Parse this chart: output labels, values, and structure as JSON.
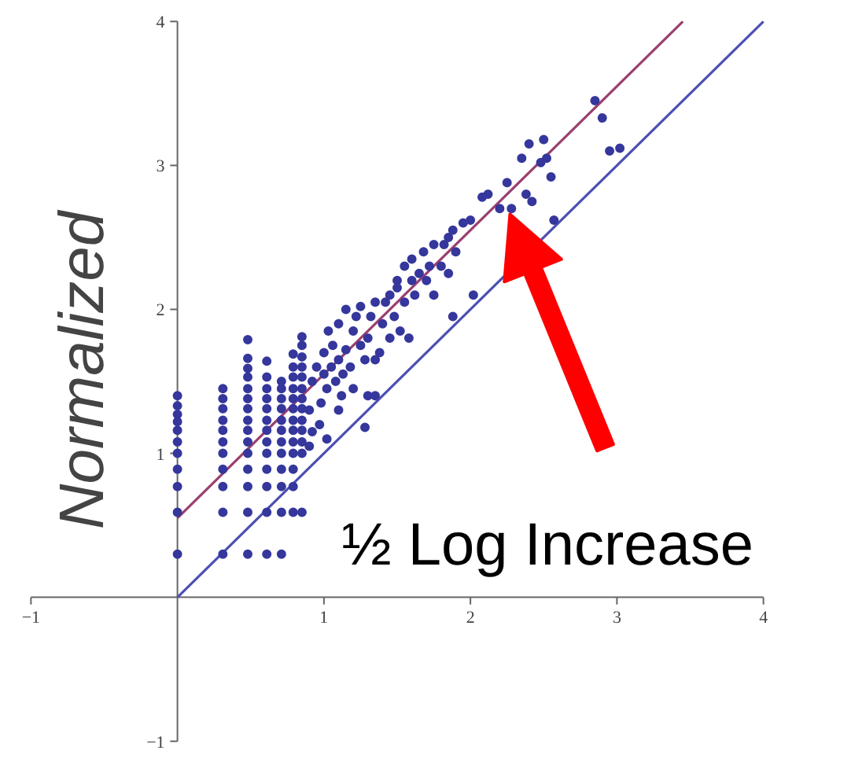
{
  "chart_data": {
    "type": "scatter",
    "ylabel": "Normalized",
    "xlim": [
      -1,
      4
    ],
    "ylim": [
      -1,
      4
    ],
    "xticks": [
      -1,
      1,
      2,
      3,
      4
    ],
    "yticks": [
      -1,
      1,
      2,
      3,
      4
    ],
    "grid": false,
    "marker": "circle",
    "annotations": [
      "½ Log Increase"
    ],
    "series": [
      {
        "type": "line",
        "marker": "none",
        "color": "#9a3f6e",
        "x": [
          0,
          3.45
        ],
        "values": [
          0.55,
          4.0
        ]
      },
      {
        "type": "line",
        "marker": "none",
        "color": "#4c4fb2",
        "x": [
          0,
          4
        ],
        "values": [
          0,
          4
        ]
      },
      {
        "color": "#35379c",
        "x": [
          0,
          0,
          0,
          0,
          0,
          0,
          0,
          0,
          0,
          0,
          0,
          0.31,
          0.31,
          0.31,
          0.31,
          0.31,
          0.31,
          0.31,
          0.31,
          0.31,
          0.31,
          0.31,
          0.48,
          0.48,
          0.48,
          0.48,
          0.48,
          0.48,
          0.48,
          0.48,
          0.48,
          0.48,
          0.48,
          0.48,
          0.48,
          0.48,
          0.48,
          0.61,
          0.61,
          0.61,
          0.61,
          0.61,
          0.61,
          0.61,
          0.61,
          0.61,
          0.61,
          0.61,
          0.61,
          0.61,
          0.71,
          0.71,
          0.71,
          0.71,
          0.71,
          0.71,
          0.71,
          0.71,
          0.71,
          0.71,
          0.71,
          0.71,
          0.79,
          0.79,
          0.79,
          0.79,
          0.79,
          0.79,
          0.79,
          0.79,
          0.79,
          0.79,
          0.79,
          0.79,
          0.79,
          0.85,
          0.85,
          0.85,
          0.85,
          0.85,
          0.85,
          0.85,
          0.85,
          0.85,
          0.85,
          0.85,
          0.85,
          0.85,
          0.9,
          0.9,
          0.92,
          0.95,
          0.97,
          0.98,
          1.0,
          1.0,
          1.02,
          1.03,
          1.05,
          1.06,
          1.08,
          1.1,
          1.1,
          1.12,
          1.13,
          1.15,
          1.15,
          1.18,
          1.2,
          1.2,
          1.22,
          1.25,
          1.25,
          1.28,
          1.3,
          1.3,
          1.32,
          1.35,
          1.35,
          1.38,
          1.4,
          1.42,
          1.45,
          1.45,
          1.48,
          1.5,
          1.5,
          1.52,
          1.55,
          1.55,
          1.58,
          1.6,
          1.6,
          1.62,
          1.65,
          1.68,
          1.7,
          1.72,
          1.75,
          1.75,
          1.8,
          1.82,
          1.85,
          1.85,
          1.88,
          1.9,
          1.88,
          1.95,
          2.0,
          2.02,
          2.08,
          2.12,
          2.2,
          2.25,
          2.28,
          2.38,
          2.35,
          2.4,
          2.42,
          2.48,
          2.5,
          2.52,
          2.55,
          2.57,
          2.85,
          2.9,
          2.95,
          3.02,
          1.35,
          1.28,
          1.02,
          1.1,
          0.92
        ],
        "values": [
          0.3,
          0.59,
          0.77,
          0.89,
          1.0,
          1.08,
          1.16,
          1.22,
          1.27,
          1.33,
          1.4,
          0.3,
          0.59,
          0.77,
          0.89,
          1.0,
          1.08,
          1.16,
          1.23,
          1.31,
          1.38,
          1.45,
          0.3,
          0.59,
          0.77,
          0.89,
          1.0,
          1.08,
          1.16,
          1.23,
          1.31,
          1.38,
          1.45,
          1.53,
          1.59,
          1.66,
          1.79,
          0.3,
          0.59,
          0.77,
          0.89,
          1.0,
          1.08,
          1.16,
          1.23,
          1.31,
          1.38,
          1.45,
          1.53,
          1.64,
          0.3,
          0.59,
          0.77,
          0.89,
          1.0,
          1.08,
          1.16,
          1.23,
          1.31,
          1.38,
          1.45,
          1.5,
          0.59,
          0.77,
          0.89,
          1.0,
          1.08,
          1.16,
          1.23,
          1.31,
          1.38,
          1.45,
          1.53,
          1.6,
          1.69,
          0.59,
          1.0,
          1.08,
          1.16,
          1.23,
          1.31,
          1.38,
          1.45,
          1.53,
          1.6,
          1.67,
          1.75,
          1.81,
          1.05,
          1.3,
          1.5,
          1.6,
          1.2,
          1.35,
          1.55,
          1.7,
          1.45,
          1.85,
          1.6,
          1.75,
          1.5,
          1.65,
          1.9,
          1.4,
          1.55,
          1.72,
          2.0,
          1.6,
          1.85,
          1.45,
          1.95,
          1.75,
          2.02,
          1.65,
          1.8,
          1.4,
          1.95,
          2.05,
          1.65,
          1.7,
          1.9,
          2.05,
          1.8,
          2.1,
          1.95,
          2.15,
          2.2,
          1.85,
          2.05,
          2.3,
          1.8,
          2.2,
          2.35,
          2.1,
          2.25,
          2.4,
          2.2,
          2.3,
          2.45,
          2.1,
          2.3,
          2.45,
          2.5,
          2.25,
          2.55,
          2.4,
          1.95,
          2.6,
          2.62,
          2.1,
          2.78,
          2.8,
          2.7,
          2.88,
          2.7,
          2.8,
          3.05,
          3.15,
          2.75,
          3.02,
          3.18,
          3.05,
          2.92,
          2.62,
          3.45,
          3.33,
          3.1,
          3.12,
          1.4,
          1.18,
          1.1,
          1.3,
          1.15
        ]
      }
    ]
  }
}
